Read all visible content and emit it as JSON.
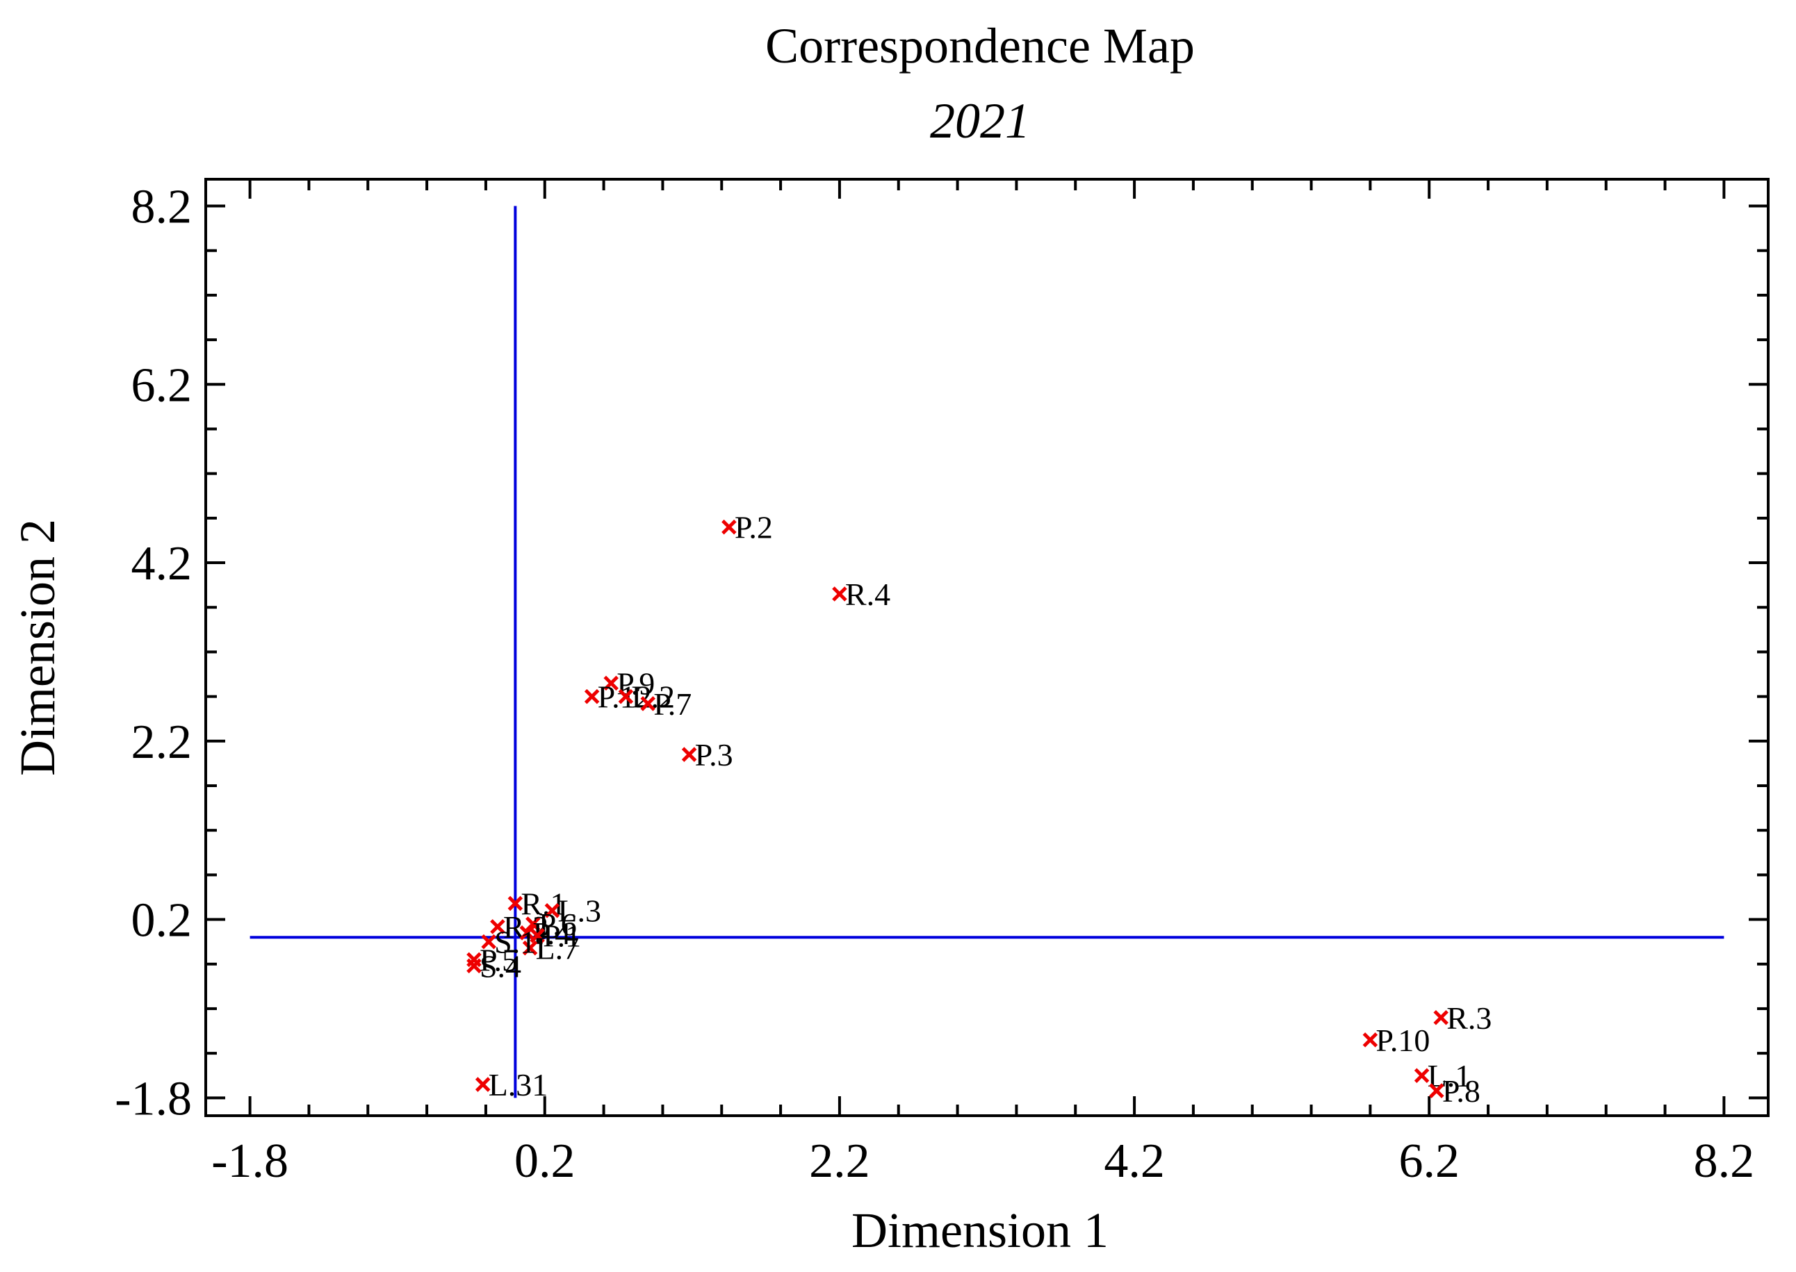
{
  "chart_data": {
    "type": "scatter",
    "title": "Correspondence Map",
    "subtitle": "2021",
    "xlabel": "Dimension 1",
    "ylabel": "Dimension 2",
    "xlim": [
      -2.1,
      8.5
    ],
    "ylim": [
      -2.0,
      8.5
    ],
    "xticks": [
      -1.8,
      0.2,
      2.2,
      4.2,
      6.2,
      8.2
    ],
    "xtick_labels": [
      "-1.8",
      "0.2",
      "2.2",
      "4.2",
      "6.2",
      "8.2"
    ],
    "yticks": [
      -1.8,
      0.2,
      2.2,
      4.2,
      6.2,
      8.2
    ],
    "ytick_labels": [
      "-1.8",
      "0.2",
      "2.2",
      "4.2",
      "6.2",
      "8.2"
    ],
    "reference_lines": {
      "x": 0.0,
      "y": 0.0,
      "x_range": [
        -1.8,
        8.2
      ],
      "y_range": [
        -1.8,
        8.2
      ],
      "color": "#0000dd"
    },
    "marker_color": "#ee0000",
    "points": [
      {
        "label": "P.2",
        "x": 1.45,
        "y": 4.6
      },
      {
        "label": "R.4",
        "x": 2.2,
        "y": 3.85
      },
      {
        "label": "P.9",
        "x": 0.65,
        "y": 2.85
      },
      {
        "label": "P.12",
        "x": 0.52,
        "y": 2.7
      },
      {
        "label": "L.2",
        "x": 0.75,
        "y": 2.7
      },
      {
        "label": "P.7",
        "x": 0.9,
        "y": 2.62
      },
      {
        "label": "P.3",
        "x": 1.18,
        "y": 2.05
      },
      {
        "label": "R.1",
        "x": 0.0,
        "y": 0.38
      },
      {
        "label": "L.3",
        "x": 0.25,
        "y": 0.3
      },
      {
        "label": "P.6",
        "x": 0.12,
        "y": 0.15
      },
      {
        "label": "R.2",
        "x": -0.12,
        "y": 0.12
      },
      {
        "label": "P.4",
        "x": 0.08,
        "y": 0.05
      },
      {
        "label": "P.1",
        "x": 0.15,
        "y": 0.02
      },
      {
        "label": "L.7",
        "x": 0.1,
        "y": -0.12
      },
      {
        "label": "S.1",
        "x": -0.18,
        "y": -0.05
      },
      {
        "label": "S.4",
        "x": -0.28,
        "y": -0.32
      },
      {
        "label": "P.5",
        "x": -0.28,
        "y": -0.25
      },
      {
        "label": "L.31",
        "x": -0.22,
        "y": -1.65
      },
      {
        "label": "R.3",
        "x": 6.28,
        "y": -0.9
      },
      {
        "label": "P.10",
        "x": 5.8,
        "y": -1.15
      },
      {
        "label": "L.1",
        "x": 6.15,
        "y": -1.55
      },
      {
        "label": "P.8",
        "x": 6.25,
        "y": -1.72
      }
    ]
  }
}
